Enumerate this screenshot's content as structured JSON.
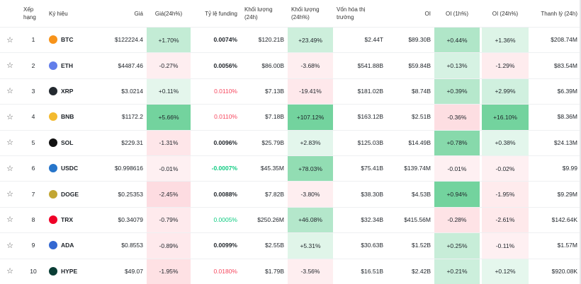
{
  "table": {
    "headers": [
      "Xếp hạng",
      "Ký hiệu",
      "Giá",
      "Giá(24h%)",
      "Tỷ lệ funding",
      "Khối lượng (24h)",
      "Khối lượng (24h%)",
      "Vốn hóa thị trường",
      "OI",
      "OI (1h%)",
      "OI (24h%)",
      "Thanh lý (24h)"
    ],
    "rows": [
      [
        "1",
        "BTC",
        "$122224.4",
        "+1.70%",
        "0.0074%",
        "$120.21B",
        "+23.49%",
        "$2.44T",
        "$89.30B",
        "+0.44%",
        "+1.36%",
        "$208.74M"
      ],
      [
        "2",
        "ETH",
        "$4487.46",
        "-0.27%",
        "0.0056%",
        "$86.00B",
        "-3.68%",
        "$541.88B",
        "$59.84B",
        "+0.13%",
        "-1.29%",
        "$83.54M"
      ],
      [
        "3",
        "XRP",
        "$3.0214",
        "+0.11%",
        "0.0110%",
        "$7.13B",
        "-19.41%",
        "$181.02B",
        "$8.74B",
        "+0.39%",
        "+2.99%",
        "$6.39M"
      ],
      [
        "4",
        "BNB",
        "$1172.2",
        "+5.66%",
        "0.0110%",
        "$7.18B",
        "+107.12%",
        "$163.12B",
        "$2.51B",
        "-0.36%",
        "+16.10%",
        "$8.36M"
      ],
      [
        "5",
        "SOL",
        "$229.31",
        "-1.31%",
        "0.0096%",
        "$25.79B",
        "+2.83%",
        "$125.03B",
        "$14.49B",
        "+0.78%",
        "+0.38%",
        "$24.13M"
      ],
      [
        "6",
        "USDC",
        "$0.998616",
        "-0.01%",
        "-0.0007%",
        "$45.35M",
        "+78.03%",
        "$75.41B",
        "$139.74M",
        "-0.01%",
        "-0.02%",
        "$9.99"
      ],
      [
        "7",
        "DOGE",
        "$0.25353",
        "-2.45%",
        "0.0088%",
        "$7.82B",
        "-3.80%",
        "$38.30B",
        "$4.53B",
        "+0.94%",
        "-1.95%",
        "$9.29M"
      ],
      [
        "8",
        "TRX",
        "$0.34079",
        "-0.79%",
        "0.0005%",
        "$250.26M",
        "+46.08%",
        "$32.34B",
        "$415.56M",
        "-0.28%",
        "-2.61%",
        "$142.64K"
      ],
      [
        "9",
        "ADA",
        "$0.8553",
        "-0.89%",
        "0.0099%",
        "$2.55B",
        "+5.31%",
        "$30.63B",
        "$1.52B",
        "+0.25%",
        "-0.11%",
        "$1.57M"
      ],
      [
        "10",
        "HYPE",
        "$49.07",
        "-1.95%",
        "0.0180%",
        "$1.79B",
        "-3.56%",
        "$16.51B",
        "$2.42B",
        "+0.21%",
        "+0.12%",
        "$920.08K"
      ]
    ]
  }
}
